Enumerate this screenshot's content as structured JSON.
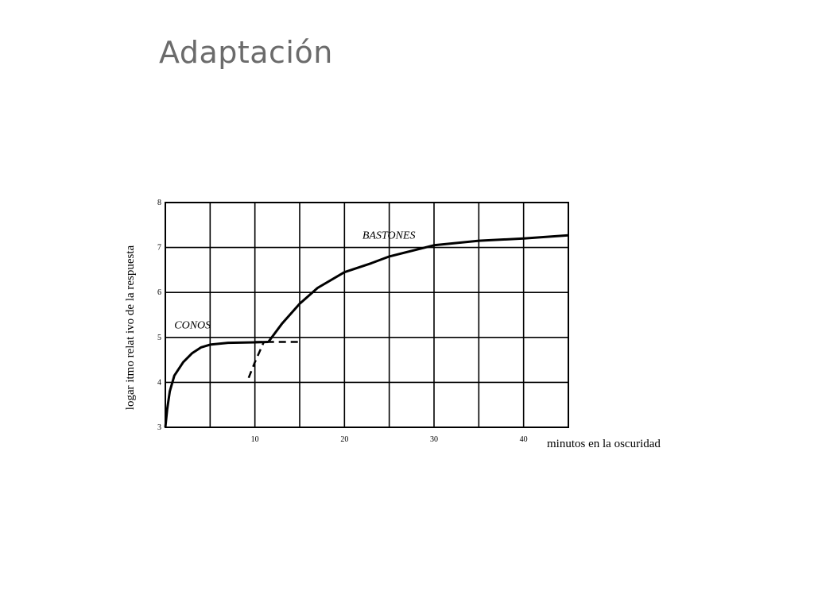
{
  "slide": {
    "title": "Adaptación"
  },
  "chart_data": {
    "type": "line",
    "title": "",
    "xlabel": "minutos en la oscuridad",
    "ylabel": "logar itmo relat ivo de la respuesta",
    "xlim": [
      0,
      45
    ],
    "ylim": [
      3,
      8
    ],
    "x_ticks": [
      10,
      20,
      30,
      40
    ],
    "y_ticks": [
      3,
      4,
      5,
      6,
      7,
      8
    ],
    "grid": true,
    "grid_x_step": 5,
    "grid_y_step": 1,
    "series": [
      {
        "name": "CONOS",
        "style": "solid",
        "points": [
          [
            0,
            3
          ],
          [
            0.2,
            3.4
          ],
          [
            0.5,
            3.8
          ],
          [
            1,
            4.15
          ],
          [
            2,
            4.45
          ],
          [
            3,
            4.65
          ],
          [
            4,
            4.78
          ],
          [
            5,
            4.84
          ],
          [
            7,
            4.88
          ],
          [
            10,
            4.89
          ],
          [
            11.5,
            4.9
          ]
        ]
      },
      {
        "name": "BASTONES",
        "style": "solid",
        "points": [
          [
            11.5,
            4.9
          ],
          [
            13,
            5.3
          ],
          [
            15,
            5.75
          ],
          [
            17,
            6.1
          ],
          [
            20,
            6.45
          ],
          [
            23,
            6.65
          ],
          [
            25,
            6.8
          ],
          [
            28,
            6.95
          ],
          [
            30,
            7.05
          ],
          [
            35,
            7.15
          ],
          [
            40,
            7.2
          ],
          [
            45,
            7.27
          ]
        ]
      },
      {
        "name": "",
        "style": "dashed",
        "points": [
          [
            10,
            4.9
          ],
          [
            15,
            4.9
          ]
        ]
      },
      {
        "name": "",
        "style": "dashed",
        "points": [
          [
            9.3,
            4.1
          ],
          [
            10,
            4.45
          ],
          [
            11,
            4.9
          ]
        ]
      }
    ],
    "annotations": [
      {
        "text": "CONOS",
        "x": 1,
        "y": 5.2
      },
      {
        "text": "BASTONES",
        "x": 22,
        "y": 7.2
      }
    ]
  }
}
